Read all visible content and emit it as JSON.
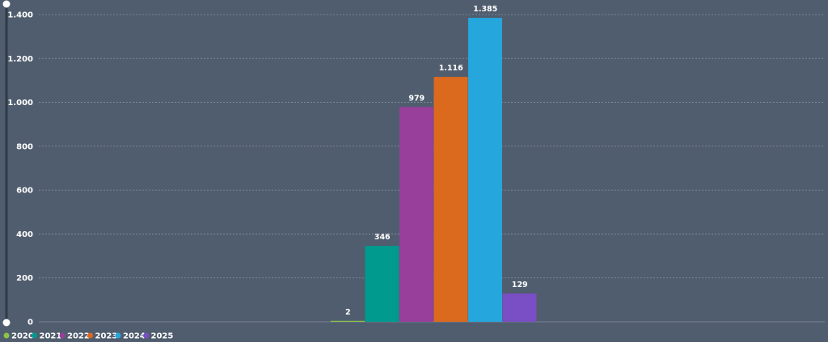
{
  "chart_data": {
    "type": "bar",
    "title": "",
    "xlabel": "",
    "ylabel": "",
    "ylim": [
      0,
      1400
    ],
    "yticks": [
      0,
      200,
      400,
      600,
      800,
      1000,
      1200,
      1400
    ],
    "ytick_labels": [
      "0",
      "200",
      "400",
      "600",
      "800",
      "1.000",
      "1.200",
      "1.400"
    ],
    "grid": true,
    "legend_position": "bottom-left",
    "series": [
      {
        "name": "2020",
        "value": 2,
        "label": "2",
        "color": "#8bc34a"
      },
      {
        "name": "2021",
        "value": 346,
        "label": "346",
        "color": "#009a8f"
      },
      {
        "name": "2022",
        "value": 979,
        "label": "979",
        "color": "#973f9b"
      },
      {
        "name": "2023",
        "value": 1116,
        "label": "1.116",
        "color": "#dc6a1e"
      },
      {
        "name": "2024",
        "value": 1385,
        "label": "1.385",
        "color": "#25a6dc"
      },
      {
        "name": "2025",
        "value": 129,
        "label": "129",
        "color": "#7a4ec4"
      }
    ]
  },
  "colors": {
    "background": "#505d6e",
    "gridline": "#8592a2",
    "slider_track": "#2f3a48",
    "slider_handle": "#ffffff"
  }
}
